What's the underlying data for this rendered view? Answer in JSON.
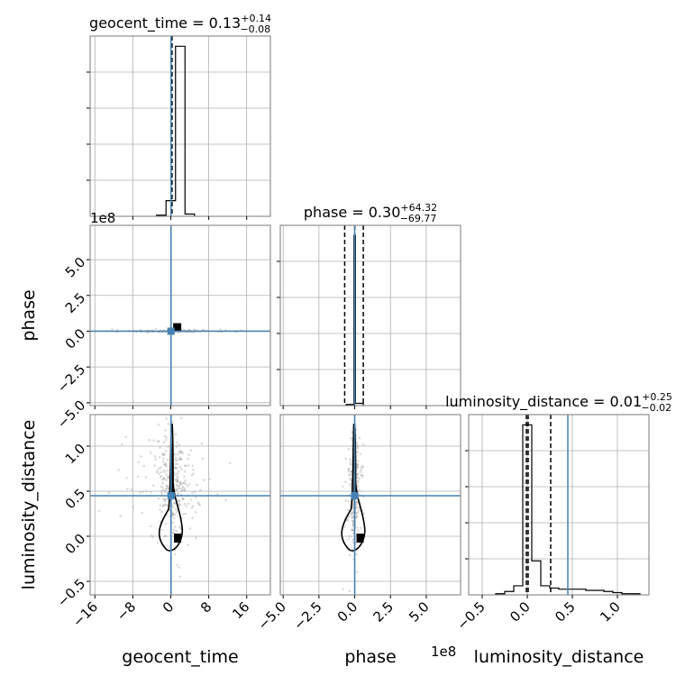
{
  "chart_data": {
    "type": "corner",
    "parameters": [
      "geocent_time",
      "phase",
      "luminosity_distance"
    ],
    "titles": [
      {
        "parameter": "geocent_time",
        "text": "geocent_time = 0.13",
        "plus": "+0.14",
        "minus": "−0.08"
      },
      {
        "parameter": "phase",
        "text": "phase = 0.30",
        "plus": "+64.32",
        "minus": "−69.77"
      },
      {
        "parameter": "luminosity_distance",
        "text": "luminosity_distance = 0.01",
        "plus": "+0.25",
        "minus": "−0.02"
      }
    ],
    "offset_labels": {
      "geocent_time_phase_panel": "1e8",
      "phase_x_axis": "1e8"
    },
    "axes": {
      "geocent_time": {
        "range": [
          -17,
          21
        ],
        "ticks": [
          -16,
          -8,
          0,
          8,
          16
        ],
        "tick_labels": [
          "−16",
          "−8",
          "0",
          "8",
          "16"
        ]
      },
      "phase": {
        "range": [
          -5.2,
          7.4
        ],
        "ticks": [
          -5,
          -2.5,
          0,
          2.5,
          5
        ],
        "tick_labels": [
          "−5.0",
          "−2.5",
          "0.0",
          "2.5",
          "5.0"
        ],
        "scale_exponent": 8
      },
      "luminosity_distance": {
        "range": [
          -0.65,
          1.35
        ],
        "ticks": [
          -0.5,
          0,
          0.5,
          1
        ],
        "tick_labels": [
          "−0.5",
          "0.0",
          "0.5",
          "1.0"
        ]
      }
    },
    "truth": {
      "geocent_time": 0.05,
      "phase": 0.0,
      "luminosity_distance": 0.45
    },
    "quantile_lines": {
      "geocent_time": [
        0.05,
        0.13,
        0.27
      ],
      "phase": [
        -0.7,
        0.003,
        0.6
      ],
      "luminosity_distance": [
        -0.01,
        0.01,
        0.26
      ]
    },
    "histograms": {
      "geocent_time": {
        "edges": [
          -3,
          -1,
          1,
          3,
          5
        ],
        "counts": [
          1,
          14,
          152,
          2
        ]
      },
      "phase": {
        "edges": [
          -0.6,
          -0.05,
          0.05,
          0.6
        ],
        "counts": [
          1,
          150,
          2
        ]
      },
      "luminosity_distance": {
        "edges": [
          -0.35,
          -0.25,
          -0.15,
          -0.05,
          0.05,
          0.15,
          0.25,
          0.35,
          0.45,
          0.55,
          0.65,
          0.75,
          0.85,
          0.95,
          1.05,
          1.15,
          1.25
        ],
        "counts": [
          1,
          3,
          8,
          150,
          30,
          8,
          6,
          5,
          5,
          5,
          4,
          4,
          3,
          2,
          1,
          1
        ]
      }
    },
    "grid": true
  }
}
